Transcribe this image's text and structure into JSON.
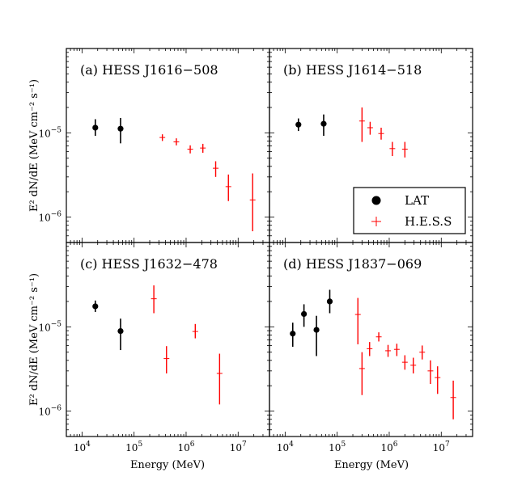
{
  "chart_data": {
    "type": "scatter",
    "layout": "2x2 panels, log-log axes, shared x and y",
    "xlabel": "Energy (MeV)",
    "ylabel": "E² dN/dE (MeV cm⁻² s⁻¹)",
    "xlim": [
      5000,
      40000000
    ],
    "ylim": [
      5e-07,
      0.0001
    ],
    "x_ticks": [
      {
        "value": 10000,
        "base": "10",
        "exp": "4"
      },
      {
        "value": 100000,
        "base": "10",
        "exp": "5"
      },
      {
        "value": 1000000,
        "base": "10",
        "exp": "6"
      },
      {
        "value": 10000000,
        "base": "10",
        "exp": "7"
      }
    ],
    "y_ticks": [
      {
        "value": 1e-06,
        "base": "10",
        "exp": "−6"
      },
      {
        "value": 1e-05,
        "base": "10",
        "exp": "−5"
      }
    ],
    "legend": {
      "position": "lower-right of panel (b)",
      "entries": [
        {
          "label": "LAT",
          "color": "#000000",
          "marker": "circle"
        },
        {
          "label": "H.E.S.S",
          "color": "#ff0000",
          "marker": "plus"
        }
      ]
    },
    "panels": [
      {
        "title": "(a) HESS J1616−508",
        "series": [
          {
            "name": "LAT",
            "color": "#000000",
            "marker": "circle",
            "points": [
              {
                "x": 18000,
                "y": 1.15e-05,
                "ylo": 9.2e-06,
                "yhi": 1.45e-05
              },
              {
                "x": 55000,
                "y": 1.12e-05,
                "ylo": 7.5e-06,
                "yhi": 1.5e-05
              }
            ]
          },
          {
            "name": "H.E.S.S",
            "color": "#ff0000",
            "marker": "plus",
            "points": [
              {
                "x": 350000,
                "y": 8.8e-06,
                "ylo": 8e-06,
                "yhi": 9.6e-06
              },
              {
                "x": 650000,
                "y": 7.8e-06,
                "ylo": 7.1e-06,
                "yhi": 8.6e-06
              },
              {
                "x": 1200000,
                "y": 6.4e-06,
                "ylo": 5.7e-06,
                "yhi": 7.1e-06
              },
              {
                "x": 2100000,
                "y": 6.6e-06,
                "ylo": 5.8e-06,
                "yhi": 7.4e-06
              },
              {
                "x": 3700000,
                "y": 3.8e-06,
                "ylo": 3e-06,
                "yhi": 4.6e-06
              },
              {
                "x": 6500000,
                "y": 2.3e-06,
                "ylo": 1.55e-06,
                "yhi": 3.2e-06
              },
              {
                "x": 19000000,
                "y": 1.6e-06,
                "ylo": 6.8e-07,
                "yhi": 3.3e-06
              }
            ]
          }
        ]
      },
      {
        "title": "(b) HESS J1614−518",
        "series": [
          {
            "name": "LAT",
            "color": "#000000",
            "marker": "circle",
            "points": [
              {
                "x": 18000,
                "y": 1.25e-05,
                "ylo": 1.05e-05,
                "yhi": 1.48e-05
              },
              {
                "x": 55000,
                "y": 1.28e-05,
                "ylo": 9.2e-06,
                "yhi": 1.65e-05
              }
            ]
          },
          {
            "name": "H.E.S.S",
            "color": "#ff0000",
            "marker": "plus",
            "points": [
              {
                "x": 300000,
                "y": 1.38e-05,
                "ylo": 7.8e-06,
                "yhi": 2e-05
              },
              {
                "x": 430000,
                "y": 1.15e-05,
                "ylo": 9.5e-06,
                "yhi": 1.35e-05
              },
              {
                "x": 700000,
                "y": 9.8e-06,
                "ylo": 8.3e-06,
                "yhi": 1.15e-05
              },
              {
                "x": 1150000,
                "y": 6.5e-06,
                "ylo": 5.3e-06,
                "yhi": 7.8e-06
              },
              {
                "x": 2000000,
                "y": 6.4e-06,
                "ylo": 5.1e-06,
                "yhi": 7.8e-06
              }
            ]
          }
        ]
      },
      {
        "title": "(c) HESS J1632−478",
        "series": [
          {
            "name": "LAT",
            "color": "#000000",
            "marker": "circle",
            "points": [
              {
                "x": 18000,
                "y": 1.75e-05,
                "ylo": 1.5e-05,
                "yhi": 2.05e-05
              },
              {
                "x": 55000,
                "y": 8.9e-06,
                "ylo": 5.3e-06,
                "yhi": 1.25e-05
              }
            ]
          },
          {
            "name": "H.E.S.S",
            "color": "#ff0000",
            "marker": "plus",
            "points": [
              {
                "x": 240000,
                "y": 2.15e-05,
                "ylo": 1.45e-05,
                "yhi": 3.1e-05
              },
              {
                "x": 420000,
                "y": 4.2e-06,
                "ylo": 2.8e-06,
                "yhi": 5.9e-06
              },
              {
                "x": 1500000,
                "y": 8.8e-06,
                "ylo": 7.3e-06,
                "yhi": 1.08e-05
              },
              {
                "x": 4400000,
                "y": 2.8e-06,
                "ylo": 1.2e-06,
                "yhi": 4.8e-06
              }
            ]
          }
        ]
      },
      {
        "title": "(d) HESS J1837−069",
        "series": [
          {
            "name": "LAT",
            "color": "#000000",
            "marker": "circle",
            "points": [
              {
                "x": 14000,
                "y": 8.3e-06,
                "ylo": 5.8e-06,
                "yhi": 1.12e-05
              },
              {
                "x": 23000,
                "y": 1.42e-05,
                "ylo": 1e-05,
                "yhi": 1.85e-05
              },
              {
                "x": 40000,
                "y": 9.2e-06,
                "ylo": 4.5e-06,
                "yhi": 1.35e-05
              },
              {
                "x": 72000,
                "y": 2e-05,
                "ylo": 1.45e-05,
                "yhi": 2.75e-05
              }
            ]
          },
          {
            "name": "H.E.S.S",
            "color": "#ff0000",
            "marker": "plus",
            "points": [
              {
                "x": 250000,
                "y": 1.4e-05,
                "ylo": 6.2e-06,
                "yhi": 2.2e-05
              },
              {
                "x": 300000,
                "y": 3.2e-06,
                "ylo": 1.55e-06,
                "yhi": 5e-06
              },
              {
                "x": 420000,
                "y": 5.5e-06,
                "ylo": 4.5e-06,
                "yhi": 6.6e-06
              },
              {
                "x": 630000,
                "y": 7.6e-06,
                "ylo": 6.7e-06,
                "yhi": 8.6e-06
              },
              {
                "x": 950000,
                "y": 5.2e-06,
                "ylo": 4.4e-06,
                "yhi": 6.1e-06
              },
              {
                "x": 1400000,
                "y": 5.4e-06,
                "ylo": 4.5e-06,
                "yhi": 6.3e-06
              },
              {
                "x": 2000000,
                "y": 3.8e-06,
                "ylo": 3.1e-06,
                "yhi": 4.6e-06
              },
              {
                "x": 2900000,
                "y": 3.5e-06,
                "ylo": 2.8e-06,
                "yhi": 4.3e-06
              },
              {
                "x": 4300000,
                "y": 5e-06,
                "ylo": 4.1e-06,
                "yhi": 6e-06
              },
              {
                "x": 6200000,
                "y": 3e-06,
                "ylo": 2.1e-06,
                "yhi": 4e-06
              },
              {
                "x": 8500000,
                "y": 2.5e-06,
                "ylo": 1.6e-06,
                "yhi": 3.4e-06
              },
              {
                "x": 17000000,
                "y": 1.45e-06,
                "ylo": 8e-07,
                "yhi": 2.3e-06
              }
            ]
          }
        ]
      }
    ]
  }
}
